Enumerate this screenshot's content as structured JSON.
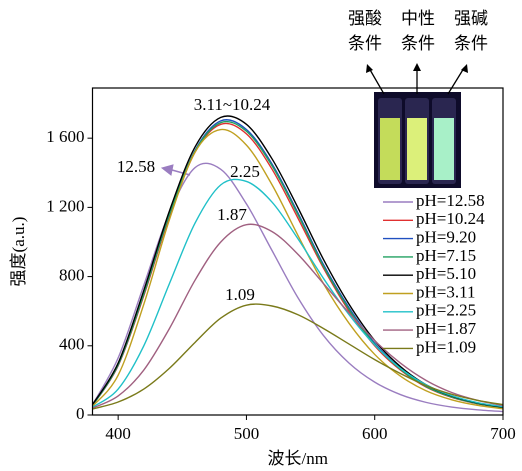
{
  "chart_data": {
    "type": "line",
    "xlabel": "波长/nm",
    "ylabel": "强度(a.u.)",
    "x": [
      380,
      400,
      420,
      440,
      460,
      480,
      500,
      520,
      540,
      560,
      580,
      600,
      620,
      640,
      660,
      680,
      700
    ],
    "xlim": [
      380,
      700
    ],
    "xticks": [
      400,
      500,
      600,
      700
    ],
    "ylim": [
      0,
      1890
    ],
    "yticks": [
      0,
      400,
      800,
      {
        "value": 1200,
        "label": "1 200"
      },
      {
        "value": 1600,
        "label": "1 600"
      }
    ],
    "series": [
      {
        "name": "pH=12.58",
        "color": "#9a7dc0",
        "values": [
          60,
          330,
          750,
          1170,
          1430,
          1420,
          1220,
          950,
          680,
          460,
          300,
          190,
          118,
          73,
          46,
          30,
          20
        ]
      },
      {
        "name": "pH=10.24",
        "color": "#e03030",
        "values": [
          55,
          285,
          690,
          1150,
          1520,
          1680,
          1625,
          1420,
          1140,
          850,
          600,
          400,
          260,
          162,
          102,
          65,
          42
        ]
      },
      {
        "name": "pH=9.20",
        "color": "#2050c0",
        "values": [
          55,
          290,
          700,
          1160,
          1530,
          1700,
          1650,
          1450,
          1170,
          870,
          620,
          415,
          270,
          168,
          105,
          67,
          43
        ]
      },
      {
        "name": "pH=7.15",
        "color": "#20a060",
        "values": [
          55,
          290,
          700,
          1160,
          1525,
          1690,
          1640,
          1440,
          1160,
          860,
          610,
          408,
          265,
          165,
          104,
          66,
          42
        ]
      },
      {
        "name": "pH=5.10",
        "color": "#000000",
        "values": [
          60,
          300,
          720,
          1180,
          1550,
          1720,
          1680,
          1480,
          1200,
          900,
          640,
          430,
          280,
          175,
          110,
          70,
          45
        ]
      },
      {
        "name": "pH=3.11",
        "color": "#c0a020",
        "values": [
          50,
          230,
          640,
          1130,
          1520,
          1650,
          1560,
          1330,
          1040,
          760,
          530,
          350,
          225,
          140,
          88,
          56,
          36
        ]
      },
      {
        "name": "pH=2.25",
        "color": "#20c0c8",
        "values": [
          45,
          150,
          400,
          760,
          1110,
          1330,
          1350,
          1230,
          1020,
          790,
          580,
          405,
          270,
          175,
          112,
          72,
          48
        ]
      },
      {
        "name": "pH=1.87",
        "color": "#a06080",
        "values": [
          40,
          110,
          260,
          500,
          780,
          1000,
          1100,
          1060,
          930,
          760,
          590,
          430,
          300,
          200,
          130,
          85,
          55
        ]
      },
      {
        "name": "pH=1.09",
        "color": "#7a7a1a",
        "values": [
          35,
          75,
          150,
          270,
          420,
          560,
          635,
          630,
          580,
          500,
          410,
          320,
          240,
          170,
          120,
          85,
          60
        ]
      }
    ],
    "annotations": [
      "3.11~10.24",
      "12.58",
      "2.25",
      "1.87",
      "1.09"
    ],
    "inset_labels": [
      [
        "强酸",
        "条件"
      ],
      [
        "中性",
        "条件"
      ],
      [
        "强碱",
        "条件"
      ]
    ]
  }
}
